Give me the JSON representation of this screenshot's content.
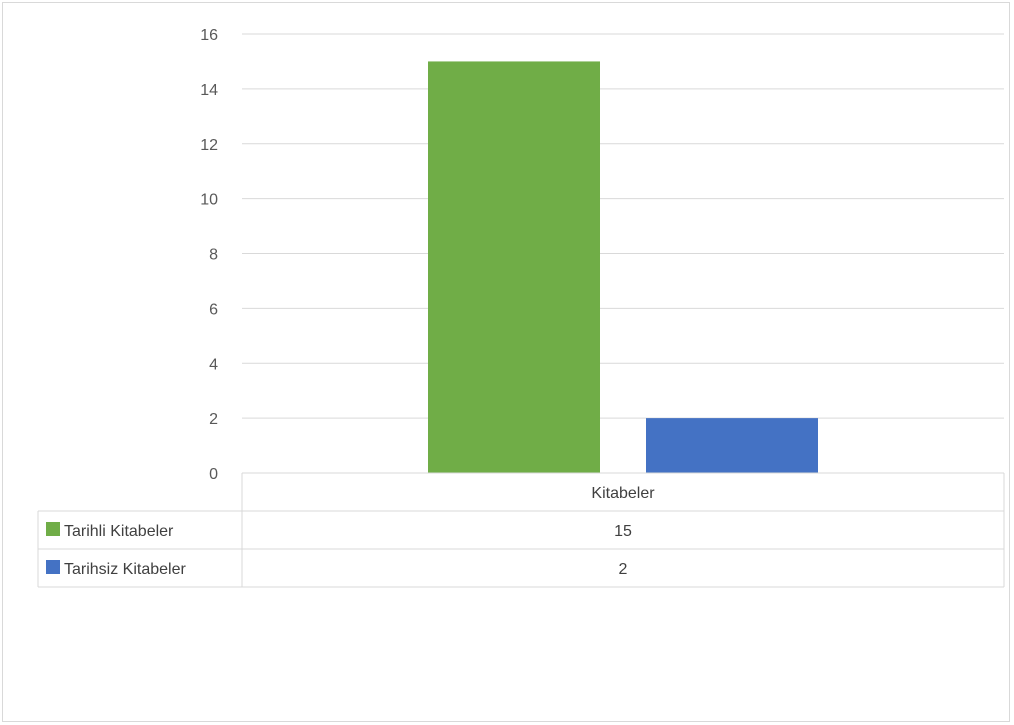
{
  "chart_data": {
    "type": "bar",
    "categories": [
      "Kitabeler"
    ],
    "series": [
      {
        "name": "Tarihli Kitabeler",
        "values": [
          15
        ],
        "color": "#70ad47"
      },
      {
        "name": "Tarihsiz Kitabeler",
        "values": [
          2
        ],
        "color": "#4472c4"
      }
    ],
    "ylim": [
      0,
      16
    ],
    "yticks": [
      "0",
      "2",
      "4",
      "6",
      "8",
      "10",
      "12",
      "14",
      "16"
    ],
    "grid": true,
    "legend": "data-table",
    "table": {
      "header": "Kitabeler",
      "rows": [
        {
          "label": "Tarihli Kitabeler",
          "value": "15"
        },
        {
          "label": "Tarihsiz Kitabeler",
          "value": "2"
        }
      ]
    }
  }
}
